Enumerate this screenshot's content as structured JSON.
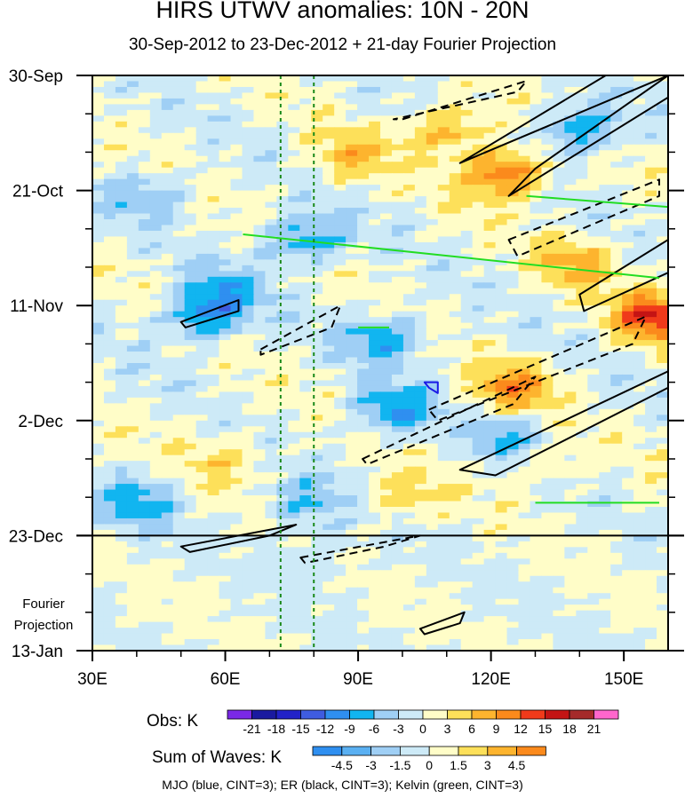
{
  "chart_data": {
    "type": "heatmap",
    "title": "HIRS UTWV anomalies: 10N - 20N",
    "subtitle": "30-Sep-2012 to 23-Dec-2012 + 21-day Fourier Projection",
    "x_axis": {
      "label": "",
      "range": [
        30,
        160
      ],
      "ticks": [
        30,
        60,
        90,
        120,
        150
      ],
      "tick_labels": [
        "30E",
        "60E",
        "90E",
        "120E",
        "150E"
      ]
    },
    "y_axis": {
      "label": "",
      "range_days": [
        0,
        105
      ],
      "ticks_days": [
        0,
        21,
        42,
        63,
        84,
        105
      ],
      "tick_labels": [
        "30-Sep",
        "21-Oct",
        "11-Nov",
        "2-Dec",
        "23-Dec",
        "13-Jan"
      ]
    },
    "projection_start_day": 84,
    "projection_label_line1": "Fourier",
    "projection_label_line2": "Projection",
    "reference_longitudes": [
      72.5,
      80
    ],
    "obs_colorbar": {
      "title": "Obs: K",
      "levels": [
        "-21",
        "-18",
        "-15",
        "-12",
        "-9",
        "-6",
        "-3",
        "0",
        "3",
        "6",
        "9",
        "12",
        "15",
        "18",
        "21"
      ],
      "colors": [
        "#7a29e6",
        "#1a1aa0",
        "#2222c8",
        "#3f5ce0",
        "#2f8ff0",
        "#11b5f0",
        "#9fcff5",
        "#cdeaf7",
        "#fffdc8",
        "#fde05a",
        "#fdb42e",
        "#fb8a1c",
        "#f03a1a",
        "#c41414",
        "#a52a2a",
        "#ff66cc"
      ]
    },
    "waves_colorbar": {
      "title": "Sum of Waves: K",
      "levels": [
        "-4.5",
        "-3",
        "-1.5",
        "0",
        "1.5",
        "3",
        "4.5"
      ],
      "colors": [
        "#2f8ff0",
        "#5ab0f2",
        "#9fcff5",
        "#cdeaf7",
        "#fffdc8",
        "#fde05a",
        "#fdb42e",
        "#fb8a1c"
      ]
    },
    "field_features": [
      {
        "lon": 123,
        "day": 18,
        "value": 12
      },
      {
        "lon": 110,
        "day": 10,
        "value": 8
      },
      {
        "lon": 88,
        "day": 15,
        "value": 6
      },
      {
        "lon": 157,
        "day": 44,
        "value": 14
      },
      {
        "lon": 125,
        "day": 57,
        "value": 9
      },
      {
        "lon": 140,
        "day": 34,
        "value": 7
      },
      {
        "lon": 130,
        "day": 70,
        "value": 6
      },
      {
        "lon": 140,
        "day": 10,
        "value": -9
      },
      {
        "lon": 78,
        "day": 30,
        "value": -9
      },
      {
        "lon": 55,
        "day": 44,
        "value": -10
      },
      {
        "lon": 96,
        "day": 48,
        "value": -8
      },
      {
        "lon": 98,
        "day": 61,
        "value": -9
      },
      {
        "lon": 125,
        "day": 67,
        "value": -8
      },
      {
        "lon": 60,
        "day": 39,
        "value": -6
      },
      {
        "lon": 42,
        "day": 22,
        "value": -5
      },
      {
        "lon": 78,
        "day": 78,
        "value": -6
      },
      {
        "lon": 40,
        "day": 78,
        "value": -7
      },
      {
        "lon": 60,
        "day": 70,
        "value": 4
      },
      {
        "lon": 100,
        "day": 77,
        "value": 5
      },
      {
        "lon": 80,
        "day": 88,
        "value": -4
      }
    ],
    "contours": [
      {
        "wave": "ER",
        "color": "#000000",
        "style": "solid",
        "points": [
          [
            113,
            16
          ],
          [
            150,
            -2
          ],
          [
            160,
            -2
          ],
          [
            160,
            0
          ]
        ]
      },
      {
        "wave": "ER",
        "color": "#000000",
        "style": "solid",
        "points": [
          [
            130,
            17
          ],
          [
            160,
            0
          ],
          [
            160,
            4
          ],
          [
            124,
            22
          ]
        ]
      },
      {
        "wave": "ER",
        "color": "#000000",
        "style": "solid",
        "points": [
          [
            140,
            40
          ],
          [
            160,
            30
          ],
          [
            160,
            36
          ],
          [
            141,
            43
          ]
        ]
      },
      {
        "wave": "ER",
        "color": "#000000",
        "style": "solid",
        "points": [
          [
            113,
            72
          ],
          [
            160,
            54
          ],
          [
            160,
            57
          ],
          [
            121,
            73
          ]
        ]
      },
      {
        "wave": "ER",
        "color": "#000000",
        "style": "solid",
        "points": [
          [
            50,
            45
          ],
          [
            63,
            41
          ],
          [
            63,
            43
          ],
          [
            51,
            46
          ]
        ]
      },
      {
        "wave": "ER",
        "color": "#000000",
        "style": "solid",
        "points": [
          [
            50,
            86
          ],
          [
            76,
            82
          ],
          [
            70,
            84
          ],
          [
            52,
            87
          ]
        ]
      },
      {
        "wave": "ER",
        "color": "#000000",
        "style": "solid",
        "points": [
          [
            104,
            101
          ],
          [
            114,
            98
          ],
          [
            113,
            100
          ],
          [
            105,
            102
          ]
        ]
      },
      {
        "wave": "ER",
        "color": "#000000",
        "style": "dashed",
        "points": [
          [
            100,
            8
          ],
          [
            128,
            1
          ],
          [
            126,
            3
          ],
          [
            98,
            8
          ]
        ]
      },
      {
        "wave": "ER",
        "color": "#000000",
        "style": "dashed",
        "points": [
          [
            124,
            30
          ],
          [
            158,
            19
          ],
          [
            158,
            22
          ],
          [
            126,
            33
          ]
        ]
      },
      {
        "wave": "ER",
        "color": "#000000",
        "style": "dashed",
        "points": [
          [
            68,
            50
          ],
          [
            86,
            42
          ],
          [
            84,
            46
          ],
          [
            68,
            51
          ]
        ]
      },
      {
        "wave": "ER",
        "color": "#000000",
        "style": "dashed",
        "points": [
          [
            106,
            61
          ],
          [
            155,
            44
          ],
          [
            152,
            49
          ],
          [
            108,
            63
          ]
        ]
      },
      {
        "wave": "ER",
        "color": "#000000",
        "style": "dashed",
        "points": [
          [
            91,
            70
          ],
          [
            130,
            55
          ],
          [
            125,
            60
          ],
          [
            92,
            71
          ]
        ]
      },
      {
        "wave": "ER",
        "color": "#000000",
        "style": "dashed",
        "points": [
          [
            77,
            88
          ],
          [
            104,
            84
          ],
          [
            96,
            86
          ],
          [
            78,
            89
          ]
        ]
      },
      {
        "wave": "Kelvin",
        "color": "#22dd22",
        "style": "solid",
        "points": [
          [
            64,
            29
          ],
          [
            158,
            37
          ]
        ]
      },
      {
        "wave": "Kelvin",
        "color": "#22dd22",
        "style": "solid",
        "points": [
          [
            128,
            22
          ],
          [
            160,
            24
          ]
        ]
      },
      {
        "wave": "Kelvin",
        "color": "#22dd22",
        "style": "solid",
        "points": [
          [
            90,
            46
          ],
          [
            97,
            46
          ]
        ]
      },
      {
        "wave": "Kelvin",
        "color": "#22dd22",
        "style": "solid",
        "points": [
          [
            130,
            78
          ],
          [
            158,
            78
          ]
        ]
      },
      {
        "wave": "MJO",
        "color": "#1a1ae6",
        "style": "solid",
        "points": [
          [
            105,
            56
          ],
          [
            108,
            56
          ],
          [
            108,
            58
          ],
          [
            106,
            57
          ]
        ]
      }
    ],
    "legend_text": "MJO (blue, CINT=3); ER (black, CINT=3); Kelvin (green, CINT=3)"
  }
}
